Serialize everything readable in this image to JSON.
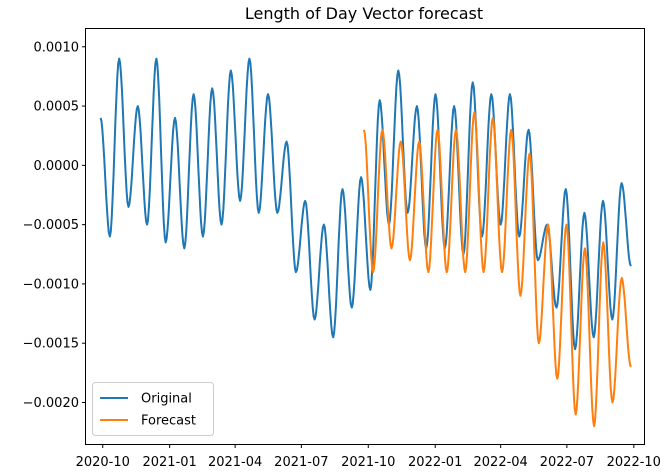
{
  "chart_data": {
    "type": "line",
    "title": "Length of Day Vector forecast",
    "xlabel": "",
    "ylabel": "",
    "x_axis_type": "date",
    "xlim": [
      "2020-09-08",
      "2022-10-15"
    ],
    "ylim": [
      -0.00235,
      0.00115
    ],
    "x_ticks": [
      {
        "date": "2020-10-01",
        "label": "2020-10"
      },
      {
        "date": "2021-01-01",
        "label": "2021-01"
      },
      {
        "date": "2021-04-01",
        "label": "2021-04"
      },
      {
        "date": "2021-07-01",
        "label": "2021-07"
      },
      {
        "date": "2021-10-01",
        "label": "2021-10"
      },
      {
        "date": "2022-01-01",
        "label": "2022-01"
      },
      {
        "date": "2022-04-01",
        "label": "2022-04"
      },
      {
        "date": "2022-07-01",
        "label": "2022-07"
      },
      {
        "date": "2022-10-01",
        "label": "2022-10"
      }
    ],
    "y_ticks": [
      {
        "value": 0.001,
        "label": "0.0010"
      },
      {
        "value": 0.0005,
        "label": "0.0005"
      },
      {
        "value": 0.0,
        "label": "0.0000"
      },
      {
        "value": -0.0005,
        "label": "−0.0005"
      },
      {
        "value": -0.001,
        "label": "−0.0010"
      },
      {
        "value": -0.0015,
        "label": "−0.0015"
      },
      {
        "value": -0.002,
        "label": "−0.0020"
      }
    ],
    "grid": false,
    "legend_position": "lower-left",
    "series": [
      {
        "name": "Original",
        "color": "#1f77b4",
        "x_start": "2020-09-28",
        "x_end": "2022-09-27",
        "envelope_y": [
          [
            0.0,
            0.0002
          ],
          [
            150,
            0.00025
          ],
          [
            260,
            -0.0006
          ],
          [
            330,
            -0.0007
          ],
          [
            440,
            0.0002
          ],
          [
            530,
            0.0
          ],
          [
            600,
            -0.0006
          ],
          [
            640,
            -0.00085
          ],
          [
            730,
            -0.00075
          ]
        ],
        "peak_y": [
          0.0004,
          0.0009,
          0.0005,
          0.0009,
          0.0004,
          0.0006,
          0.00065,
          0.0008,
          0.0009,
          0.0006,
          0.0002,
          -0.0003,
          -0.0005,
          -0.0002,
          -0.0001,
          0.00055,
          0.0008,
          0.0005,
          0.0006,
          0.0005,
          0.0007,
          0.0006,
          0.0006,
          0.0003,
          -0.0005,
          -0.0002,
          -0.0004,
          -0.0003,
          -0.00015
        ],
        "trough_y": [
          -0.0006,
          -0.00035,
          -0.0005,
          -0.00065,
          -0.0007,
          -0.0006,
          -0.0005,
          -0.0003,
          -0.0004,
          -0.0004,
          -0.0009,
          -0.0013,
          -0.00145,
          -0.0012,
          -0.00105,
          -0.0005,
          -0.0004,
          -0.0007,
          -0.0007,
          -0.00075,
          -0.0006,
          -0.0005,
          -0.0006,
          -0.0008,
          -0.0012,
          -0.00155,
          -0.00145,
          -0.0013,
          -0.00085
        ]
      },
      {
        "name": "Forecast",
        "color": "#ff7f0e",
        "x_start": "2021-09-25",
        "x_end": "2022-09-27",
        "peak_y": [
          0.0003,
          0.0003,
          0.0002,
          0.0002,
          0.0003,
          0.0003,
          0.00045,
          0.0004,
          0.0003,
          0.0001,
          -0.0005,
          -0.0005,
          -0.0007,
          -0.00065,
          -0.00095
        ],
        "trough_y": [
          -0.0009,
          -0.0007,
          -0.0008,
          -0.0009,
          -0.0009,
          -0.0009,
          -0.0009,
          -0.0009,
          -0.0011,
          -0.0015,
          -0.0018,
          -0.0021,
          -0.0022,
          -0.002,
          -0.0017
        ]
      }
    ]
  }
}
